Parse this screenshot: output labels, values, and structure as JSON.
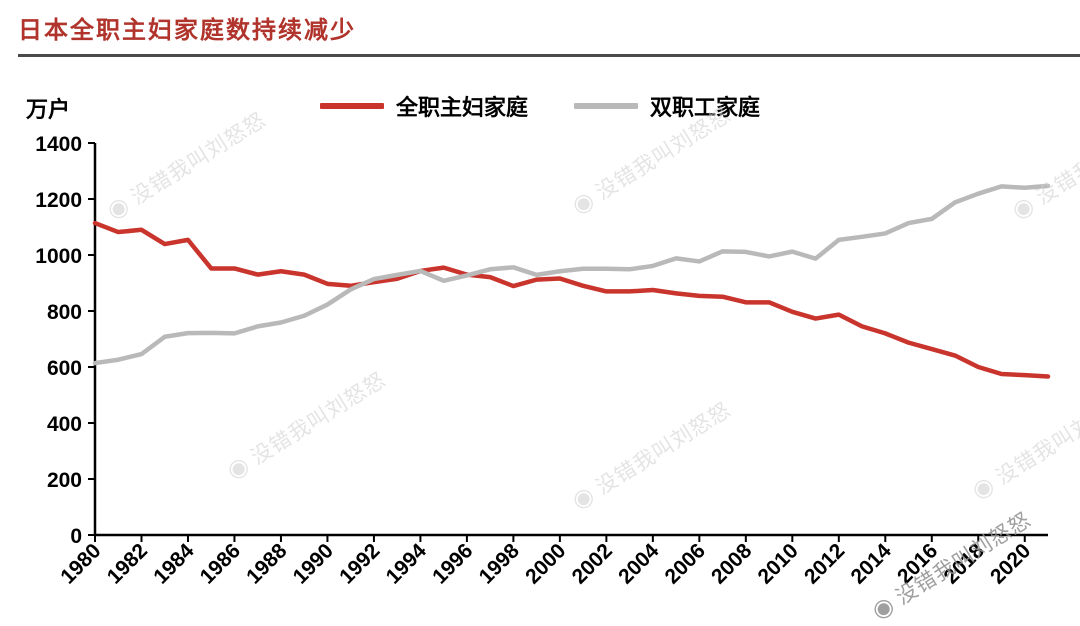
{
  "page": {
    "title": "日本全职主妇家庭数持续减少",
    "unit_label": "万户",
    "watermark": "没错我叫刘怒怒"
  },
  "legend": [
    {
      "label": "全职主妇家庭",
      "color": "#c9342c"
    },
    {
      "label": "双职工家庭",
      "color": "#b9b9b9"
    }
  ],
  "chart_data": {
    "type": "line",
    "title": "日本全职主妇家庭数持续减少",
    "ylabel": "万户",
    "ylim": [
      0,
      1400
    ],
    "ytick_step": 200,
    "grid": false,
    "legend_position": "top",
    "x": [
      1980,
      1981,
      1982,
      1983,
      1984,
      1985,
      1986,
      1987,
      1988,
      1989,
      1990,
      1991,
      1992,
      1993,
      1994,
      1995,
      1996,
      1997,
      1998,
      1999,
      2000,
      2001,
      2002,
      2003,
      2004,
      2005,
      2006,
      2007,
      2008,
      2009,
      2010,
      2011,
      2012,
      2013,
      2014,
      2015,
      2016,
      2017,
      2018,
      2019,
      2020,
      2021
    ],
    "xtick_labels": [
      "1980",
      "1982",
      "1984",
      "1986",
      "1988",
      "1990",
      "1992",
      "1994",
      "1996",
      "1998",
      "2000",
      "2002",
      "2004",
      "2006",
      "2008",
      "2010",
      "2012",
      "2014",
      "2016",
      "2018",
      "2020"
    ],
    "series": [
      {
        "name": "全职主妇家庭",
        "color": "#c9342c",
        "values": [
          1114,
          1082,
          1090,
          1039,
          1054,
          952,
          952,
          930,
          942,
          930,
          897,
          890,
          903,
          915,
          943,
          955,
          930,
          921,
          889,
          912,
          916,
          890,
          870,
          870,
          875,
          863,
          854,
          851,
          831,
          831,
          797,
          773,
          787,
          745,
          720,
          687,
          664,
          641,
          600,
          575,
          571,
          566
        ]
      },
      {
        "name": "双职工家庭",
        "color": "#b9b9b9",
        "values": [
          614,
          626,
          646,
          708,
          721,
          722,
          720,
          745,
          759,
          783,
          823,
          877,
          914,
          929,
          943,
          908,
          927,
          949,
          956,
          929,
          942,
          951,
          951,
          949,
          961,
          988,
          977,
          1013,
          1011,
          995,
          1012,
          987,
          1054,
          1065,
          1077,
          1114,
          1129,
          1188,
          1219,
          1245,
          1240,
          1247
        ]
      }
    ]
  }
}
